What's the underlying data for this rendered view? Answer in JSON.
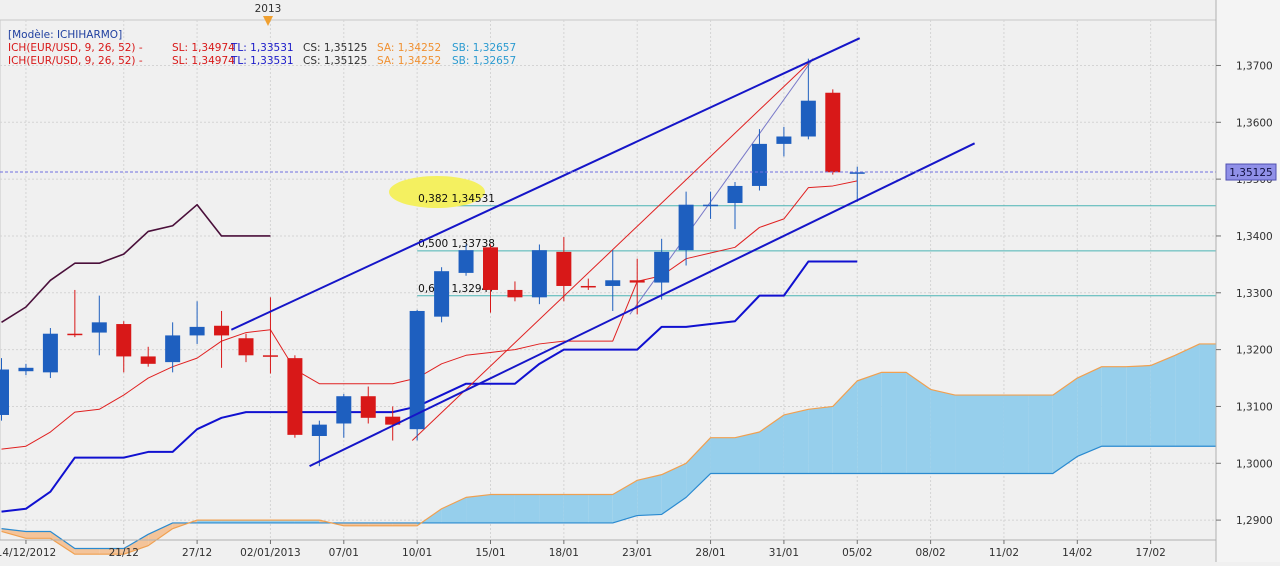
{
  "chart_data": {
    "type": "candlestick",
    "instrument": "EUR/USD",
    "title": "[Modèle: ICHIHARMO]",
    "legend_rows": [
      {
        "prefix": "ICH(EUR/USD, 9, 26, 52) -",
        "sl": "SL: 1,34974",
        "tl": "TL: 1,33531",
        "cs": "CS: 1,35125",
        "sa": "SA: 1,34252",
        "sb": "SB: 1,32657"
      },
      {
        "prefix": "ICH(EUR/USD, 9, 26, 52) -",
        "sl": "SL: 1,34974",
        "tl": "TL: 1,33531",
        "cs": "CS: 1,35125",
        "sa": "SA: 1,34252",
        "sb": "SB: 1,32657"
      }
    ],
    "year_marker": "2013",
    "ylim": [
      1.2865,
      1.378
    ],
    "y_ticks": [
      {
        "value": 1.37,
        "label": "1,3700"
      },
      {
        "value": 1.36,
        "label": "1,3600"
      },
      {
        "value": 1.35,
        "label": "1,3500"
      },
      {
        "value": 1.34,
        "label": "1,3400"
      },
      {
        "value": 1.33,
        "label": "1,3300"
      },
      {
        "value": 1.32,
        "label": "1,3200"
      },
      {
        "value": 1.31,
        "label": "1,3100"
      },
      {
        "value": 1.3,
        "label": "1,3000"
      },
      {
        "value": 1.29,
        "label": "1,2900"
      }
    ],
    "x_ticks": [
      {
        "i": 1,
        "label": "14/12/2012"
      },
      {
        "i": 5,
        "label": "21/12"
      },
      {
        "i": 8,
        "label": "27/12"
      },
      {
        "i": 11,
        "label": "02/01/2013"
      },
      {
        "i": 14,
        "label": "07/01"
      },
      {
        "i": 17,
        "label": "10/01"
      },
      {
        "i": 20,
        "label": "15/01"
      },
      {
        "i": 23,
        "label": "18/01"
      },
      {
        "i": 26,
        "label": "23/01"
      },
      {
        "i": 29,
        "label": "28/01"
      },
      {
        "i": 32,
        "label": "31/01"
      },
      {
        "i": 35,
        "label": "05/02"
      },
      {
        "i": 38,
        "label": "08/02"
      },
      {
        "i": 41,
        "label": "11/02"
      },
      {
        "i": 44,
        "label": "14/02"
      },
      {
        "i": 47,
        "label": "17/02"
      }
    ],
    "candles": [
      {
        "i": 0,
        "o": 1.3085,
        "h": 1.3185,
        "l": 1.3075,
        "c": 1.3165
      },
      {
        "i": 1,
        "o": 1.3162,
        "h": 1.3175,
        "l": 1.3155,
        "c": 1.3168
      },
      {
        "i": 2,
        "o": 1.316,
        "h": 1.3238,
        "l": 1.315,
        "c": 1.3228
      },
      {
        "i": 3,
        "o": 1.3228,
        "h": 1.3305,
        "l": 1.3222,
        "c": 1.3226
      },
      {
        "i": 4,
        "o": 1.323,
        "h": 1.3295,
        "l": 1.319,
        "c": 1.3248
      },
      {
        "i": 5,
        "o": 1.3245,
        "h": 1.325,
        "l": 1.316,
        "c": 1.3188
      },
      {
        "i": 6,
        "o": 1.3188,
        "h": 1.3205,
        "l": 1.317,
        "c": 1.3175
      },
      {
        "i": 7,
        "o": 1.3178,
        "h": 1.3248,
        "l": 1.316,
        "c": 1.3225
      },
      {
        "i": 8,
        "o": 1.3225,
        "h": 1.3285,
        "l": 1.321,
        "c": 1.324
      },
      {
        "i": 9,
        "o": 1.3242,
        "h": 1.3268,
        "l": 1.3168,
        "c": 1.3225
      },
      {
        "i": 10,
        "o": 1.322,
        "h": 1.3228,
        "l": 1.3178,
        "c": 1.319
      },
      {
        "i": 11,
        "o": 1.319,
        "h": 1.3292,
        "l": 1.3158,
        "c": 1.3188
      },
      {
        "i": 12,
        "o": 1.3185,
        "h": 1.319,
        "l": 1.3045,
        "c": 1.305
      },
      {
        "i": 13,
        "o": 1.3048,
        "h": 1.3075,
        "l": 1.2995,
        "c": 1.3068
      },
      {
        "i": 14,
        "o": 1.307,
        "h": 1.3122,
        "l": 1.3045,
        "c": 1.3118
      },
      {
        "i": 15,
        "o": 1.3118,
        "h": 1.3135,
        "l": 1.307,
        "c": 1.308
      },
      {
        "i": 16,
        "o": 1.3082,
        "h": 1.31,
        "l": 1.304,
        "c": 1.3068
      },
      {
        "i": 17,
        "o": 1.306,
        "h": 1.327,
        "l": 1.304,
        "c": 1.3268
      },
      {
        "i": 18,
        "o": 1.3258,
        "h": 1.3345,
        "l": 1.3248,
        "c": 1.3338
      },
      {
        "i": 19,
        "o": 1.3335,
        "h": 1.3385,
        "l": 1.333,
        "c": 1.3375
      },
      {
        "i": 20,
        "o": 1.338,
        "h": 1.3385,
        "l": 1.3265,
        "c": 1.3305
      },
      {
        "i": 21,
        "o": 1.3305,
        "h": 1.332,
        "l": 1.3285,
        "c": 1.3292
      },
      {
        "i": 22,
        "o": 1.3292,
        "h": 1.3385,
        "l": 1.328,
        "c": 1.3375
      },
      {
        "i": 23,
        "o": 1.3372,
        "h": 1.3398,
        "l": 1.3285,
        "c": 1.3312
      },
      {
        "i": 24,
        "o": 1.3312,
        "h": 1.3325,
        "l": 1.3305,
        "c": 1.331
      },
      {
        "i": 25,
        "o": 1.3312,
        "h": 1.3375,
        "l": 1.3268,
        "c": 1.3322
      },
      {
        "i": 26,
        "o": 1.3322,
        "h": 1.336,
        "l": 1.3262,
        "c": 1.3318
      },
      {
        "i": 27,
        "o": 1.3318,
        "h": 1.3395,
        "l": 1.3288,
        "c": 1.3372
      },
      {
        "i": 28,
        "o": 1.3375,
        "h": 1.3478,
        "l": 1.3348,
        "c": 1.3455
      },
      {
        "i": 29,
        "o": 1.3455,
        "h": 1.3478,
        "l": 1.343,
        "c": 1.3455
      },
      {
        "i": 30,
        "o": 1.3458,
        "h": 1.3495,
        "l": 1.3412,
        "c": 1.3488
      },
      {
        "i": 31,
        "o": 1.3488,
        "h": 1.3588,
        "l": 1.348,
        "c": 1.3562
      },
      {
        "i": 32,
        "o": 1.3562,
        "h": 1.3592,
        "l": 1.354,
        "c": 1.3575
      },
      {
        "i": 33,
        "o": 1.3575,
        "h": 1.3712,
        "l": 1.357,
        "c": 1.3638
      },
      {
        "i": 34,
        "o": 1.3652,
        "h": 1.3658,
        "l": 1.3508,
        "c": 1.3512
      },
      {
        "i": 35,
        "o": 1.3512,
        "h": 1.3522,
        "l": 1.346,
        "c": 1.3512
      }
    ],
    "indicators": {
      "tenkan_sen": {
        "color": "#e02020",
        "points": [
          [
            0,
            1.3025
          ],
          [
            1,
            1.303
          ],
          [
            2,
            1.3055
          ],
          [
            3,
            1.309
          ],
          [
            4,
            1.3095
          ],
          [
            5,
            1.312
          ],
          [
            6,
            1.315
          ],
          [
            7,
            1.317
          ],
          [
            8,
            1.3185
          ],
          [
            9,
            1.3215
          ],
          [
            10,
            1.323
          ],
          [
            11,
            1.3235
          ],
          [
            12,
            1.3165
          ],
          [
            13,
            1.314
          ],
          [
            14,
            1.314
          ],
          [
            15,
            1.314
          ],
          [
            16,
            1.314
          ],
          [
            17,
            1.315
          ],
          [
            18,
            1.3175
          ],
          [
            19,
            1.319
          ],
          [
            20,
            1.3195
          ],
          [
            21,
            1.32
          ],
          [
            22,
            1.321
          ],
          [
            23,
            1.3215
          ],
          [
            24,
            1.3215
          ],
          [
            25,
            1.3215
          ],
          [
            26,
            1.332
          ],
          [
            27,
            1.333
          ],
          [
            28,
            1.336
          ],
          [
            29,
            1.337
          ],
          [
            30,
            1.338
          ],
          [
            31,
            1.3415
          ],
          [
            32,
            1.343
          ],
          [
            33,
            1.3485
          ],
          [
            34,
            1.3488
          ],
          [
            35,
            1.3497
          ]
        ]
      },
      "kijun_sen": {
        "color": "#1010d0",
        "points": [
          [
            0,
            1.2915
          ],
          [
            1,
            1.292
          ],
          [
            2,
            1.295
          ],
          [
            3,
            1.301
          ],
          [
            4,
            1.301
          ],
          [
            5,
            1.301
          ],
          [
            6,
            1.302
          ],
          [
            7,
            1.302
          ],
          [
            8,
            1.306
          ],
          [
            9,
            1.308
          ],
          [
            10,
            1.309
          ],
          [
            11,
            1.309
          ],
          [
            12,
            1.309
          ],
          [
            13,
            1.309
          ],
          [
            14,
            1.309
          ],
          [
            15,
            1.309
          ],
          [
            16,
            1.309
          ],
          [
            17,
            1.31
          ],
          [
            18,
            1.312
          ],
          [
            19,
            1.314
          ],
          [
            20,
            1.314
          ],
          [
            21,
            1.314
          ],
          [
            22,
            1.3175
          ],
          [
            23,
            1.32
          ],
          [
            24,
            1.32
          ],
          [
            25,
            1.32
          ],
          [
            26,
            1.32
          ],
          [
            27,
            1.324
          ],
          [
            28,
            1.324
          ],
          [
            29,
            1.3245
          ],
          [
            30,
            1.325
          ],
          [
            31,
            1.3295
          ],
          [
            32,
            1.3295
          ],
          [
            33,
            1.3355
          ],
          [
            34,
            1.3355
          ],
          [
            35,
            1.3355
          ]
        ]
      },
      "chikou_span": {
        "color": "#4a0f3a",
        "points": [
          [
            0,
            1.3248
          ],
          [
            1,
            1.3275
          ],
          [
            2,
            1.3322
          ],
          [
            3,
            1.3352
          ],
          [
            4,
            1.3352
          ],
          [
            5,
            1.3368
          ],
          [
            6,
            1.3408
          ],
          [
            7,
            1.3418
          ],
          [
            8,
            1.3455
          ],
          [
            9,
            1.34
          ],
          [
            10,
            1.34
          ],
          [
            11,
            1.34
          ]
        ]
      },
      "senkou_a": {
        "color": "#f0a050",
        "points": [
          [
            0,
            1.288
          ],
          [
            1,
            1.2868
          ],
          [
            2,
            1.2868
          ],
          [
            3,
            1.284
          ],
          [
            4,
            1.284
          ],
          [
            5,
            1.284
          ],
          [
            6,
            1.2855
          ],
          [
            7,
            1.2885
          ],
          [
            8,
            1.29
          ],
          [
            9,
            1.29
          ],
          [
            10,
            1.29
          ],
          [
            11,
            1.29
          ],
          [
            12,
            1.29
          ],
          [
            13,
            1.29
          ],
          [
            14,
            1.289
          ],
          [
            15,
            1.289
          ],
          [
            16,
            1.289
          ],
          [
            17,
            1.289
          ],
          [
            18,
            1.292
          ],
          [
            19,
            1.294
          ],
          [
            20,
            1.2945
          ],
          [
            21,
            1.2945
          ],
          [
            22,
            1.2945
          ],
          [
            23,
            1.2945
          ],
          [
            24,
            1.2945
          ],
          [
            25,
            1.2945
          ],
          [
            26,
            1.297
          ],
          [
            27,
            1.298
          ],
          [
            28,
            1.3
          ],
          [
            29,
            1.3045
          ],
          [
            30,
            1.3045
          ],
          [
            31,
            1.3055
          ],
          [
            32,
            1.3085
          ],
          [
            33,
            1.3095
          ],
          [
            34,
            1.31
          ],
          [
            35,
            1.3145
          ],
          [
            36,
            1.316
          ],
          [
            37,
            1.316
          ],
          [
            38,
            1.313
          ],
          [
            39,
            1.312
          ],
          [
            40,
            1.312
          ],
          [
            41,
            1.312
          ],
          [
            42,
            1.312
          ],
          [
            43,
            1.312
          ],
          [
            44,
            1.315
          ],
          [
            45,
            1.317
          ],
          [
            46,
            1.317
          ],
          [
            47,
            1.3172
          ],
          [
            48,
            1.319
          ],
          [
            49,
            1.321
          ],
          [
            50,
            1.321
          ]
        ]
      },
      "senkou_b": {
        "color": "#2a8ad0",
        "points": [
          [
            0,
            1.2885
          ],
          [
            1,
            1.288
          ],
          [
            2,
            1.288
          ],
          [
            3,
            1.285
          ],
          [
            4,
            1.285
          ],
          [
            5,
            1.285
          ],
          [
            6,
            1.2875
          ],
          [
            7,
            1.2895
          ],
          [
            8,
            1.2895
          ],
          [
            9,
            1.2895
          ],
          [
            10,
            1.2895
          ],
          [
            11,
            1.2895
          ],
          [
            12,
            1.2895
          ],
          [
            13,
            1.2895
          ],
          [
            14,
            1.2895
          ],
          [
            15,
            1.2895
          ],
          [
            16,
            1.2895
          ],
          [
            17,
            1.2895
          ],
          [
            18,
            1.2895
          ],
          [
            19,
            1.2895
          ],
          [
            20,
            1.2895
          ],
          [
            21,
            1.2895
          ],
          [
            22,
            1.2895
          ],
          [
            23,
            1.2895
          ],
          [
            24,
            1.2895
          ],
          [
            25,
            1.2895
          ],
          [
            26,
            1.2908
          ],
          [
            27,
            1.291
          ],
          [
            28,
            1.294
          ],
          [
            29,
            1.2982
          ],
          [
            30,
            1.2982
          ],
          [
            31,
            1.2982
          ],
          [
            32,
            1.2982
          ],
          [
            33,
            1.2982
          ],
          [
            34,
            1.2982
          ],
          [
            35,
            1.2982
          ],
          [
            36,
            1.2982
          ],
          [
            37,
            1.2982
          ],
          [
            38,
            1.2982
          ],
          [
            39,
            1.2982
          ],
          [
            40,
            1.2982
          ],
          [
            41,
            1.2982
          ],
          [
            42,
            1.2982
          ],
          [
            43,
            1.2982
          ],
          [
            44,
            1.3012
          ],
          [
            45,
            1.303
          ],
          [
            46,
            1.303
          ],
          [
            47,
            1.303
          ],
          [
            48,
            1.303
          ],
          [
            49,
            1.303
          ],
          [
            50,
            1.303
          ]
        ]
      }
    },
    "channel_lines": [
      {
        "from": [
          12.6,
          1.2995
        ],
        "to": [
          39.8,
          1.3563
        ]
      },
      {
        "from": [
          9.4,
          1.3235
        ],
        "to": [
          35.1,
          1.3748
        ]
      }
    ],
    "fib_levels": [
      {
        "label": "0,382 1,34531",
        "value": 1.34531,
        "x_start": 17
      },
      {
        "label": "0,500 1,33738",
        "value": 1.33738,
        "x_start": 17
      },
      {
        "label": "0,618 1,32947",
        "value": 1.32947,
        "x_start": 17
      }
    ],
    "harmonic_lines": [
      {
        "from": [
          16.8,
          1.304
        ],
        "to": [
          33.2,
          1.3712
        ],
        "color": "#e02020"
      },
      {
        "from": [
          25.7,
          1.3262
        ],
        "to": [
          33.2,
          1.3712
        ],
        "color": "#7878c8"
      }
    ],
    "current_price": {
      "value": 1.35125,
      "label": "1,35125"
    },
    "colors": {
      "up": "#1e5fbf",
      "down": "#d81818",
      "cloud_fill": "#96cfec",
      "bear_cloud_fill": "#f4c49a",
      "fib": "#4ab4b4",
      "channel": "#1515c8",
      "grid": "#d4d4d4",
      "background": "#f0f0f0"
    }
  }
}
